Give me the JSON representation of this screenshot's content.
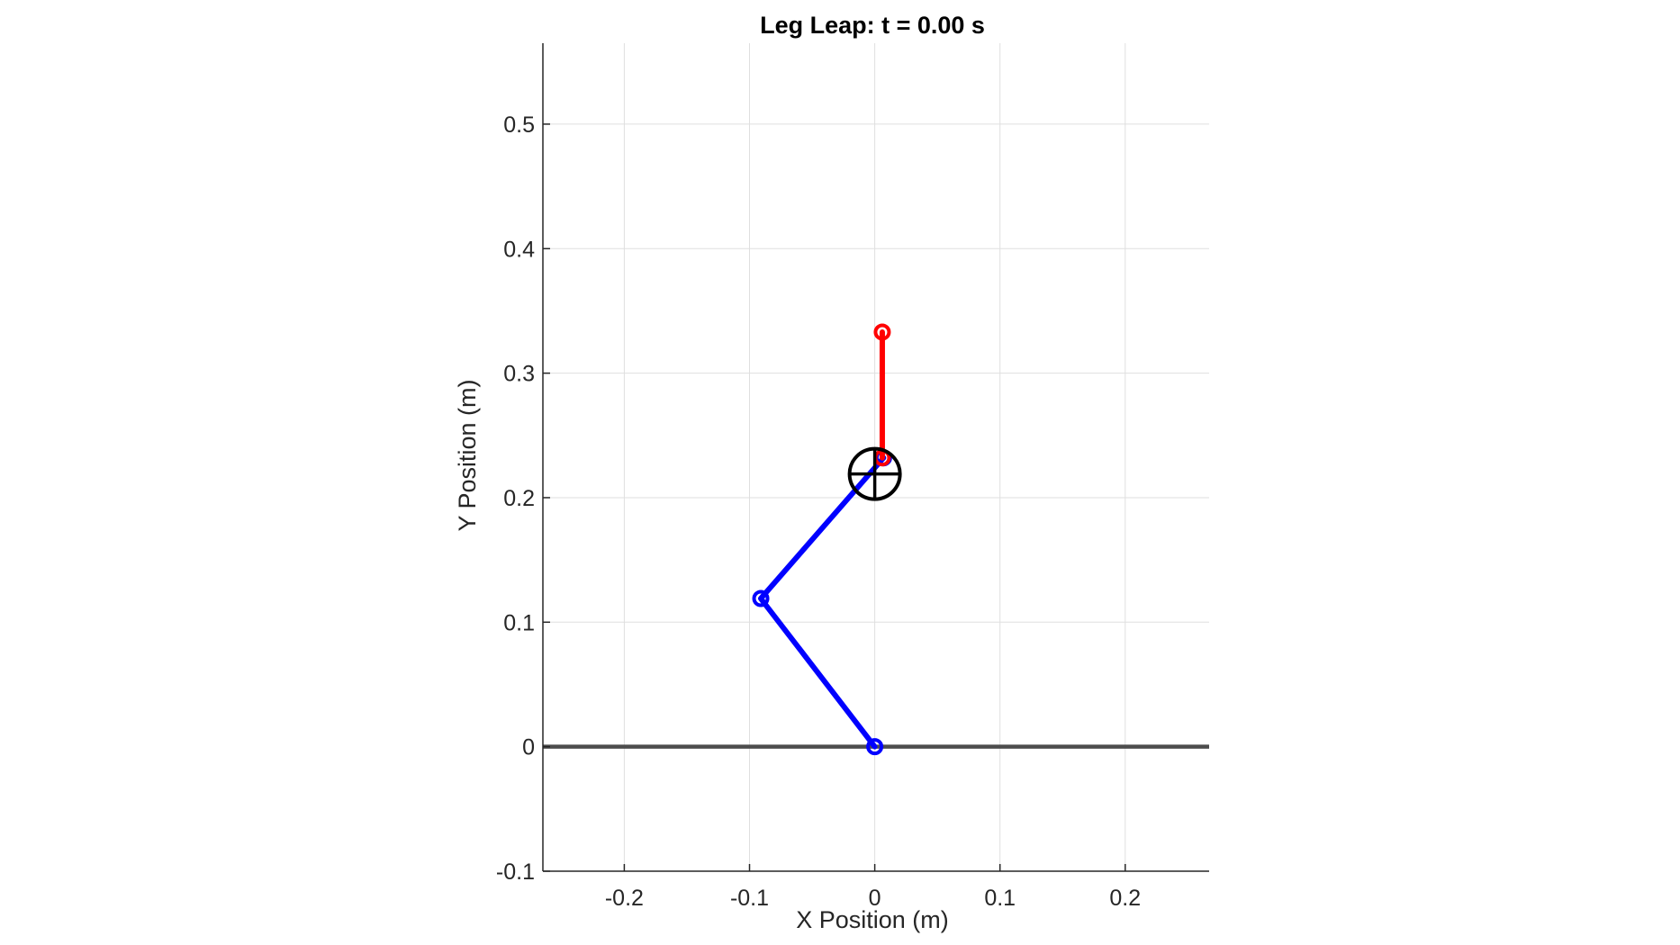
{
  "chart_data": {
    "type": "line",
    "title": "Leg Leap: t = 0.00 s",
    "xlabel": "X Position (m)",
    "ylabel": "Y Position (m)",
    "xlim": [
      -0.265,
      0.267
    ],
    "ylim": [
      -0.1,
      0.565
    ],
    "x_ticks": [
      -0.2,
      -0.1,
      0,
      0.1,
      0.2
    ],
    "x_tick_labels": [
      "-0.2",
      "-0.1",
      "0",
      "0.1",
      "0.2"
    ],
    "y_ticks": [
      -0.1,
      0,
      0.1,
      0.2,
      0.3,
      0.4,
      0.5
    ],
    "y_tick_labels": [
      "-0.1",
      "0",
      "0.1",
      "0.2",
      "0.3",
      "0.4",
      "0.5"
    ],
    "grid": true,
    "ground": {
      "y": 0,
      "x": [
        -0.265,
        0.267
      ],
      "color": "#4d4d4d"
    },
    "series": [
      {
        "color": "#0000ff",
        "marker": "circle",
        "x": [
          0.0,
          -0.091,
          0.007
        ],
        "y": [
          0.0,
          0.119,
          0.232
        ]
      },
      {
        "color": "#ff0000",
        "marker": "circle",
        "x": [
          0.006,
          0.006
        ],
        "y": [
          0.232,
          0.333
        ]
      }
    ],
    "center_of_mass": {
      "x": 0.0,
      "y": 0.219,
      "color": "#000000"
    }
  }
}
